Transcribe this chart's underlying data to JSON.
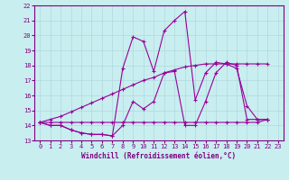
{
  "xlabel": "Windchill (Refroidissement éolien,°C)",
  "xlim": [
    -0.5,
    23.5
  ],
  "ylim": [
    13,
    22
  ],
  "xticks": [
    0,
    1,
    2,
    3,
    4,
    5,
    6,
    7,
    8,
    9,
    10,
    11,
    12,
    13,
    14,
    15,
    16,
    17,
    18,
    19,
    20,
    21,
    22,
    23
  ],
  "yticks": [
    13,
    14,
    15,
    16,
    17,
    18,
    19,
    20,
    21,
    22
  ],
  "background_color": "#c8eef0",
  "grid_color": "#b0d8dc",
  "line_color": "#990099",
  "series_x": [
    [
      0,
      1,
      2,
      3,
      4,
      5,
      6,
      7,
      8,
      9,
      10,
      11,
      12,
      13,
      14,
      15,
      16,
      17,
      18,
      19,
      20,
      21,
      22
    ],
    [
      0,
      1,
      2,
      3,
      4,
      5,
      6,
      7,
      8,
      9,
      10,
      11,
      12,
      13,
      14,
      15,
      16,
      17,
      18,
      19,
      20,
      21,
      22
    ],
    [
      0,
      1,
      2,
      3,
      4,
      5,
      6,
      7,
      8,
      9,
      10,
      11,
      12,
      13,
      14,
      15,
      16,
      17,
      18,
      19,
      20,
      21,
      22
    ],
    [
      0,
      1,
      2,
      3,
      4,
      5,
      6,
      7,
      8,
      9,
      10,
      11,
      12,
      13,
      14,
      15,
      16,
      17,
      18,
      19,
      20,
      21,
      22
    ]
  ],
  "series_y": [
    [
      14.2,
      14.0,
      14.0,
      13.7,
      13.5,
      13.4,
      13.4,
      13.3,
      17.8,
      19.9,
      19.6,
      17.6,
      20.3,
      21.0,
      21.6,
      15.7,
      17.5,
      18.2,
      18.1,
      17.8,
      15.3,
      14.4,
      14.4
    ],
    [
      14.2,
      14.0,
      14.0,
      13.7,
      13.5,
      13.4,
      13.4,
      13.3,
      14.0,
      15.6,
      15.1,
      15.6,
      17.5,
      17.6,
      14.0,
      14.0,
      15.6,
      17.5,
      18.2,
      18.0,
      14.4,
      14.4,
      14.4
    ],
    [
      14.2,
      14.2,
      14.2,
      14.2,
      14.2,
      14.2,
      14.2,
      14.2,
      14.2,
      14.2,
      14.2,
      14.2,
      14.2,
      14.2,
      14.2,
      14.2,
      14.2,
      14.2,
      14.2,
      14.2,
      14.2,
      14.2,
      14.4
    ],
    [
      14.2,
      14.4,
      14.6,
      14.9,
      15.2,
      15.5,
      15.8,
      16.1,
      16.4,
      16.7,
      17.0,
      17.2,
      17.5,
      17.7,
      17.9,
      18.0,
      18.1,
      18.1,
      18.1,
      18.1,
      18.1,
      18.1,
      18.1
    ]
  ]
}
